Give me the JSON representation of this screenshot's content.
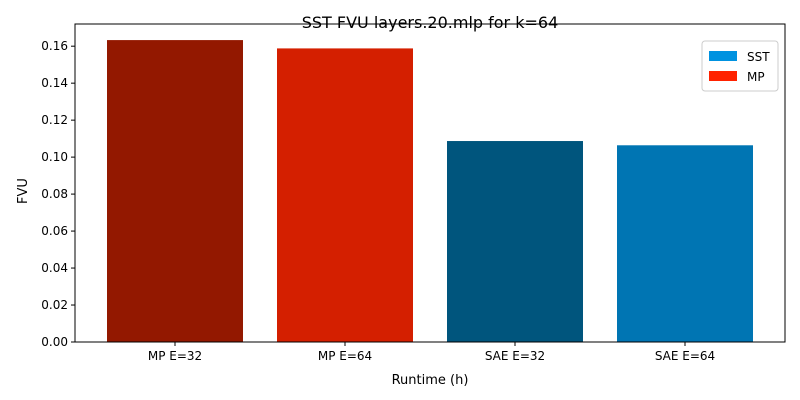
{
  "chart_data": {
    "type": "bar",
    "title": "SST FVU layers.20.mlp for k=64",
    "xlabel": "Runtime (h)",
    "ylabel": "FVU",
    "categories": [
      "MP E=32",
      "MP E=64",
      "SAE E=32",
      "SAE E=64"
    ],
    "values": [
      0.1633,
      0.1588,
      0.1087,
      0.1064
    ],
    "bar_colors": [
      "#931800",
      "#d41f00",
      "#00557d",
      "#0075b3"
    ],
    "ylim": [
      0,
      0.172
    ],
    "yticks": [
      0.0,
      0.02,
      0.04,
      0.06,
      0.08,
      0.1,
      0.12,
      0.14,
      0.16
    ],
    "ytick_labels": [
      "0.00",
      "0.02",
      "0.04",
      "0.06",
      "0.08",
      "0.10",
      "0.12",
      "0.14",
      "0.16"
    ],
    "grid": false,
    "legend": {
      "position": "top-right",
      "entries": [
        {
          "label": "SST",
          "color": "#0092e0"
        },
        {
          "label": "MP",
          "color": "#ff2200"
        }
      ]
    }
  }
}
